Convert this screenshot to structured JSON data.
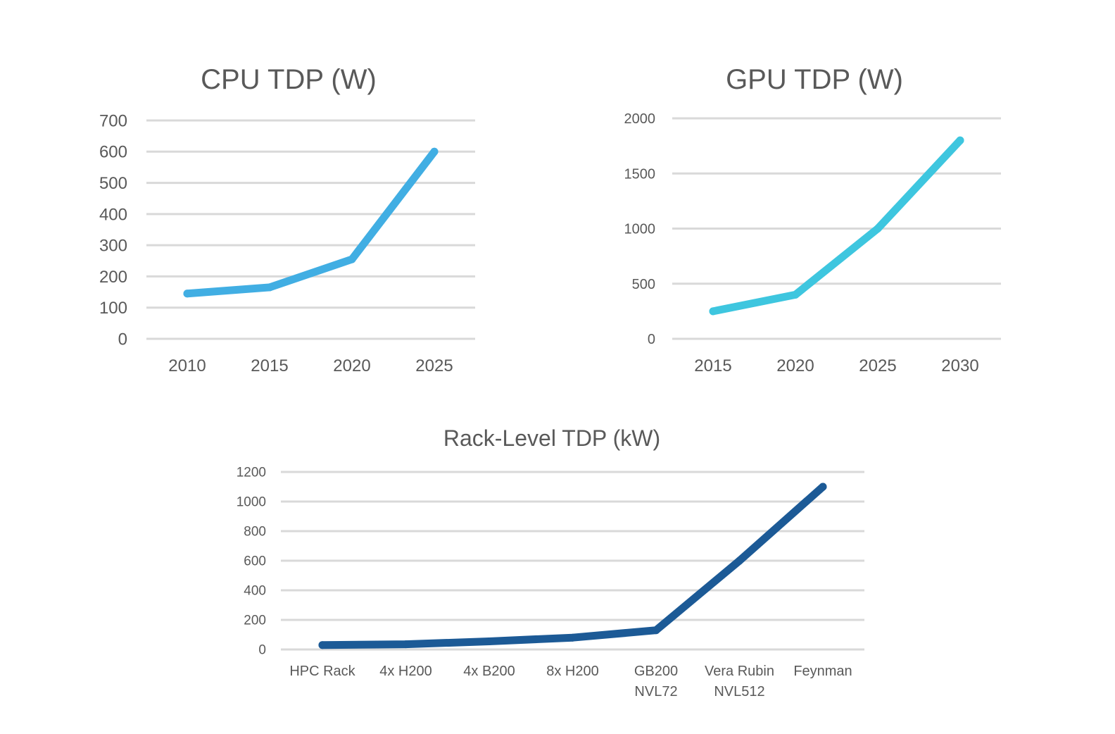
{
  "chart_data": [
    {
      "id": "cpu",
      "type": "line",
      "title": "CPU TDP (W)",
      "categories": [
        "2010",
        "2015",
        "2020",
        "2025"
      ],
      "series": [
        {
          "name": "CPU TDP (W)",
          "values": [
            145,
            165,
            255,
            600
          ],
          "color": "#41aee3"
        }
      ],
      "yticks": [
        "0",
        "100",
        "200",
        "300",
        "400",
        "500",
        "600",
        "700"
      ],
      "ylim": [
        0,
        700
      ],
      "grid": true
    },
    {
      "id": "gpu",
      "type": "line",
      "title": "GPU TDP (W)",
      "categories": [
        "2015",
        "2020",
        "2025",
        "2030"
      ],
      "series": [
        {
          "name": "GPU TDP (W)",
          "values": [
            250,
            400,
            1000,
            1800
          ],
          "color": "#3ec6df"
        }
      ],
      "yticks": [
        "0",
        "500",
        "1000",
        "1500",
        "2000"
      ],
      "ylim": [
        0,
        2000
      ],
      "grid": true
    },
    {
      "id": "rack",
      "type": "line",
      "title": "Rack-Level TDP (kW)",
      "categories": [
        [
          "HPC Rack"
        ],
        [
          "4x H200"
        ],
        [
          "4x B200"
        ],
        [
          "8x H200"
        ],
        [
          "GB200",
          "NVL72"
        ],
        [
          "Vera Rubin",
          "NVL512"
        ],
        [
          "Feynman"
        ]
      ],
      "series": [
        {
          "name": "Rack-Level TDP (kW)",
          "values": [
            30,
            35,
            55,
            80,
            130,
            600,
            1100
          ],
          "color": "#1c5a96"
        }
      ],
      "yticks": [
        "0",
        "200",
        "400",
        "600",
        "800",
        "1000",
        "1200"
      ],
      "ylim": [
        0,
        1200
      ],
      "grid": true
    }
  ]
}
